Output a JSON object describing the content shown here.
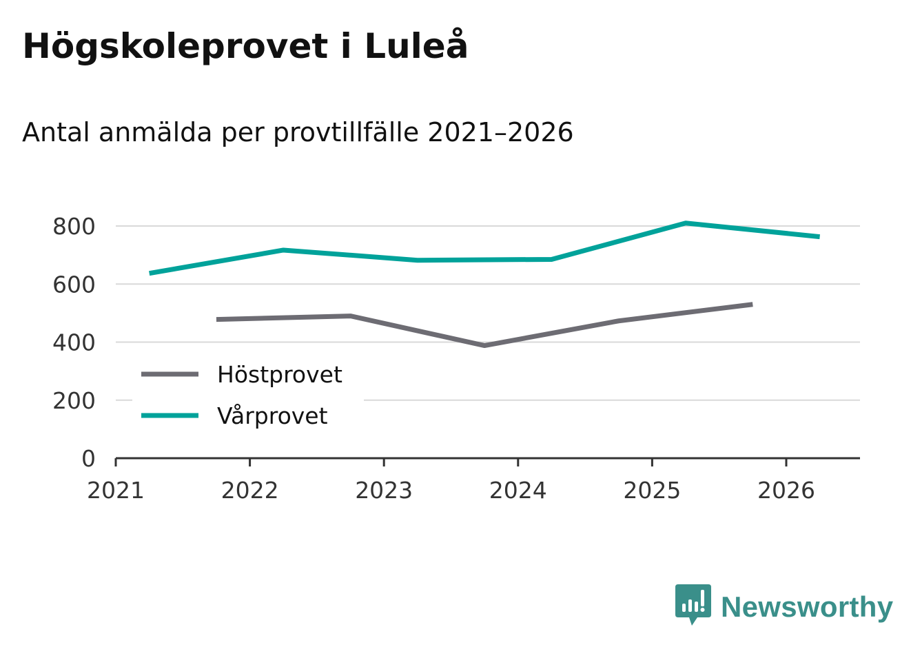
{
  "header": {
    "title": "Högskoleprovet i Luleå",
    "subtitle": "Antal anmälda per provtillfälle 2021–2026"
  },
  "chart_data": {
    "type": "line",
    "title": "Högskoleprovet i Luleå",
    "subtitle": "Antal anmälda per provtillfälle 2021–2026",
    "xlabel": "",
    "ylabel": "",
    "xlim": [
      2021,
      2026.55
    ],
    "ylim": [
      0,
      800
    ],
    "x_ticks": [
      2021,
      2022,
      2023,
      2024,
      2025,
      2026
    ],
    "y_ticks": [
      0,
      200,
      400,
      600,
      800
    ],
    "grid": true,
    "legend_position": "lower-left",
    "series": [
      {
        "name": "Höstprovet",
        "color": "#6d6c73",
        "x": [
          2021.75,
          2022.75,
          2023.75,
          2024.75,
          2025.75
        ],
        "values": [
          478,
          490,
          388,
          473,
          530
        ]
      },
      {
        "name": "Vårprovet",
        "color": "#00a29a",
        "x": [
          2021.25,
          2022.25,
          2023.25,
          2024.25,
          2025.25,
          2026.25
        ],
        "values": [
          637,
          717,
          682,
          685,
          810,
          763
        ]
      }
    ]
  },
  "logo": {
    "text": "Newsworthy",
    "icon": "newsworthy-chart-icon",
    "color": "#3a8f8a"
  }
}
